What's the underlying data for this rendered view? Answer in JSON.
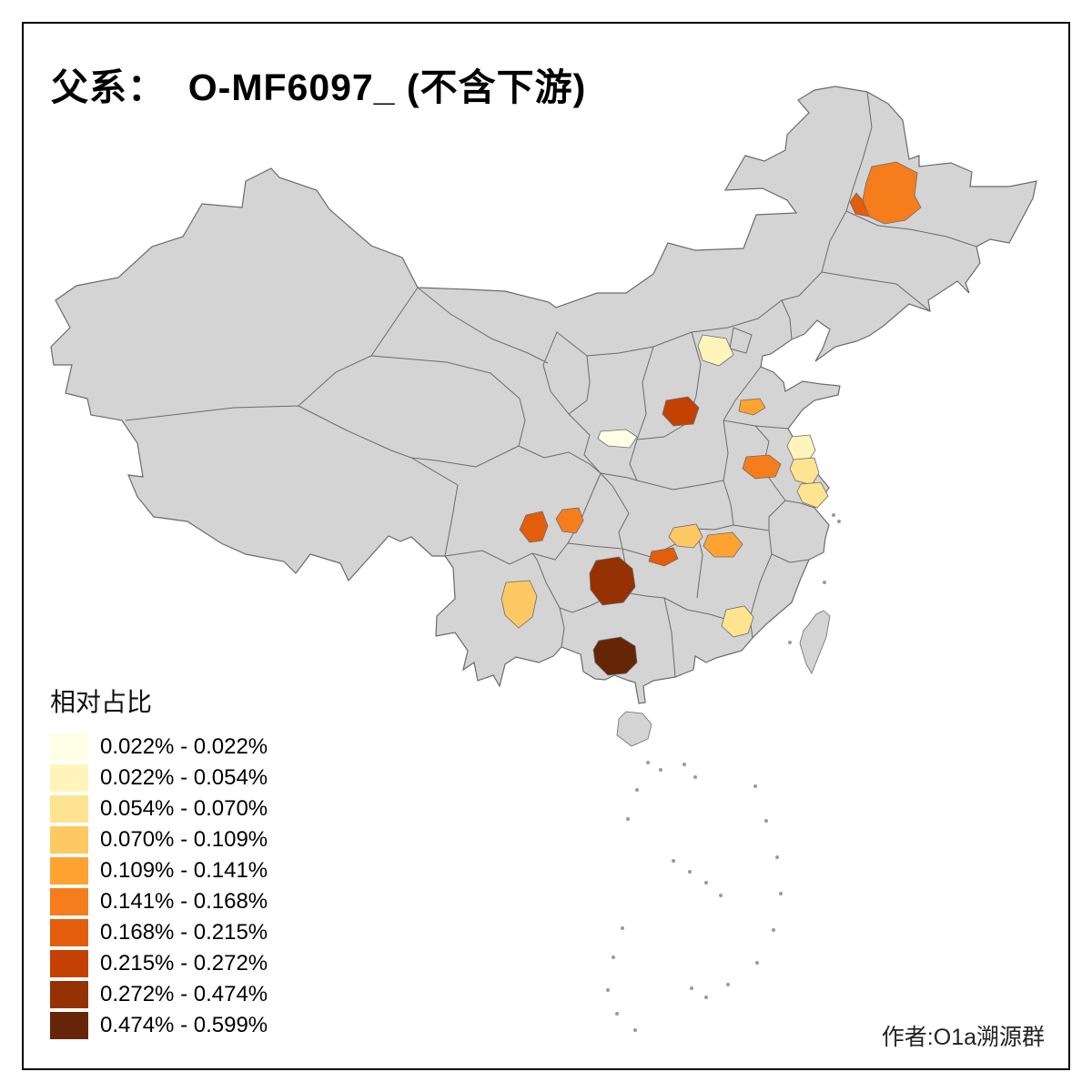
{
  "title": "父系：  O-MF6097_ (不含下游)",
  "credit": "作者:O1a溯源群",
  "legend": {
    "title": "相对占比",
    "items": [
      {
        "label": "0.022% - 0.022%",
        "color": "#FFFFE5"
      },
      {
        "label": "0.022% - 0.054%",
        "color": "#FFF5BC"
      },
      {
        "label": "0.054% - 0.070%",
        "color": "#FEE391"
      },
      {
        "label": "0.070% - 0.109%",
        "color": "#FEC863"
      },
      {
        "label": "0.109% - 0.141%",
        "color": "#FEA332"
      },
      {
        "label": "0.141% - 0.168%",
        "color": "#F67D1C"
      },
      {
        "label": "0.168% - 0.215%",
        "color": "#E25D0C"
      },
      {
        "label": "0.215% - 0.272%",
        "color": "#C44103"
      },
      {
        "label": "0.272% - 0.474%",
        "color": "#953103"
      },
      {
        "label": "0.474% - 0.599%",
        "color": "#662506"
      }
    ]
  },
  "map": {
    "land_fill": "#D4D4D4",
    "border_color": "#6B6B6B",
    "background": "#FFFFFF",
    "highlights": [
      {
        "id": "h1",
        "color_index": 5
      },
      {
        "id": "h2",
        "color_index": 6
      },
      {
        "id": "h3",
        "color_index": 1
      },
      {
        "id": "h4",
        "color_index": 7
      },
      {
        "id": "h5",
        "color_index": 4
      },
      {
        "id": "h6",
        "color_index": 0
      },
      {
        "id": "h7",
        "color_index": 1
      },
      {
        "id": "h8",
        "color_index": 2
      },
      {
        "id": "h9",
        "color_index": 5
      },
      {
        "id": "h10",
        "color_index": 2
      },
      {
        "id": "h11",
        "color_index": 6
      },
      {
        "id": "h12",
        "color_index": 5
      },
      {
        "id": "h13",
        "color_index": 6
      },
      {
        "id": "h14",
        "color_index": 3
      },
      {
        "id": "h15",
        "color_index": 4
      },
      {
        "id": "h16",
        "color_index": 8
      },
      {
        "id": "h17",
        "color_index": 3
      },
      {
        "id": "h18",
        "color_index": 9
      },
      {
        "id": "h19",
        "color_index": 2
      }
    ]
  }
}
